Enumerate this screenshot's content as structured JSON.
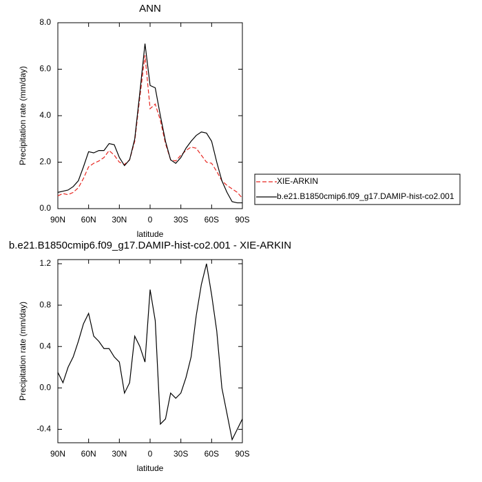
{
  "chart_data": [
    {
      "type": "line",
      "title": "ANN",
      "xlabel": "latitude",
      "ylabel": "Precipitation rate (mm/day)",
      "x": [
        90,
        85,
        80,
        75,
        70,
        65,
        60,
        55,
        50,
        45,
        40,
        35,
        30,
        25,
        20,
        15,
        10,
        5,
        0,
        -5,
        -10,
        -15,
        -20,
        -25,
        -30,
        -35,
        -40,
        -45,
        -50,
        -55,
        -60,
        -65,
        -70,
        -75,
        -80,
        -85,
        -90
      ],
      "xlim": [
        90,
        -90
      ],
      "xticks": [
        {
          "value": 90,
          "label": "90N"
        },
        {
          "value": 60,
          "label": "60N"
        },
        {
          "value": 30,
          "label": "30N"
        },
        0,
        {
          "value": -30,
          "label": "30S"
        },
        {
          "value": -60,
          "label": "60S"
        },
        {
          "value": -90,
          "label": "90S"
        }
      ],
      "ylim": [
        0,
        8
      ],
      "yticks": [
        {
          "value": 0,
          "label": "0.0"
        },
        {
          "value": 2,
          "label": "2.0"
        },
        {
          "value": 4,
          "label": "4.0"
        },
        {
          "value": 6,
          "label": "6.0"
        },
        {
          "value": 8,
          "label": "8.0"
        }
      ],
      "legend": "right",
      "series": [
        {
          "name": "XIE-ARKIN",
          "color": "#e8251f",
          "dashed": true,
          "values": [
            0.55,
            0.65,
            0.6,
            0.7,
            0.9,
            1.3,
            1.8,
            1.95,
            2.05,
            2.2,
            2.5,
            2.3,
            2.0,
            1.9,
            2.1,
            2.9,
            4.8,
            6.6,
            4.3,
            4.5,
            3.8,
            2.8,
            2.1,
            2.05,
            2.3,
            2.5,
            2.65,
            2.6,
            2.3,
            2.0,
            1.95,
            1.6,
            1.2,
            1.0,
            0.85,
            0.7,
            0.45
          ]
        },
        {
          "name": "b.e21.B1850cmip6.f09_g17.DAMIP-hist-co2.001",
          "color": "#000000",
          "dashed": false,
          "values": [
            0.7,
            0.75,
            0.8,
            0.95,
            1.2,
            1.8,
            2.45,
            2.4,
            2.5,
            2.5,
            2.8,
            2.75,
            2.2,
            1.85,
            2.1,
            3.0,
            5.0,
            7.1,
            5.3,
            5.2,
            4.0,
            2.9,
            2.1,
            1.95,
            2.2,
            2.6,
            2.9,
            3.15,
            3.3,
            3.25,
            2.9,
            2.0,
            1.2,
            0.7,
            0.3,
            0.25,
            0.25
          ]
        }
      ]
    },
    {
      "type": "line",
      "title": "b.e21.B1850cmip6.f09_g17.DAMIP-hist-co2.001 - XIE-ARKIN",
      "xlabel": "latitude",
      "ylabel": "Precipitation rate (mm/day)",
      "x": [
        90,
        85,
        80,
        75,
        70,
        65,
        60,
        55,
        50,
        45,
        40,
        35,
        30,
        25,
        20,
        15,
        10,
        5,
        0,
        -5,
        -10,
        -15,
        -20,
        -25,
        -30,
        -35,
        -40,
        -45,
        -50,
        -55,
        -60,
        -65,
        -70,
        -75,
        -80,
        -85,
        -90
      ],
      "xlim": [
        90,
        -90
      ],
      "xticks": [
        {
          "value": 90,
          "label": "90N"
        },
        {
          "value": 60,
          "label": "60N"
        },
        {
          "value": 30,
          "label": "30N"
        },
        0,
        {
          "value": -30,
          "label": "30S"
        },
        {
          "value": -60,
          "label": "60S"
        },
        {
          "value": -90,
          "label": "90S"
        }
      ],
      "ylim": [
        -0.53,
        1.24
      ],
      "yticks": [
        -0.4,
        {
          "value": 0,
          "label": "0.0"
        },
        0.4,
        0.8,
        1.2
      ],
      "series": [
        {
          "color": "#000000",
          "dashed": false,
          "values": [
            0.15,
            0.05,
            0.2,
            0.3,
            0.45,
            0.62,
            0.72,
            0.5,
            0.45,
            0.38,
            0.38,
            0.3,
            0.25,
            -0.05,
            0.05,
            0.5,
            0.4,
            0.25,
            0.95,
            0.65,
            -0.35,
            -0.3,
            -0.05,
            -0.1,
            -0.05,
            0.1,
            0.3,
            0.7,
            1.0,
            1.2,
            0.9,
            0.55,
            0.0,
            -0.25,
            -0.5,
            -0.4,
            -0.3
          ]
        }
      ]
    }
  ]
}
